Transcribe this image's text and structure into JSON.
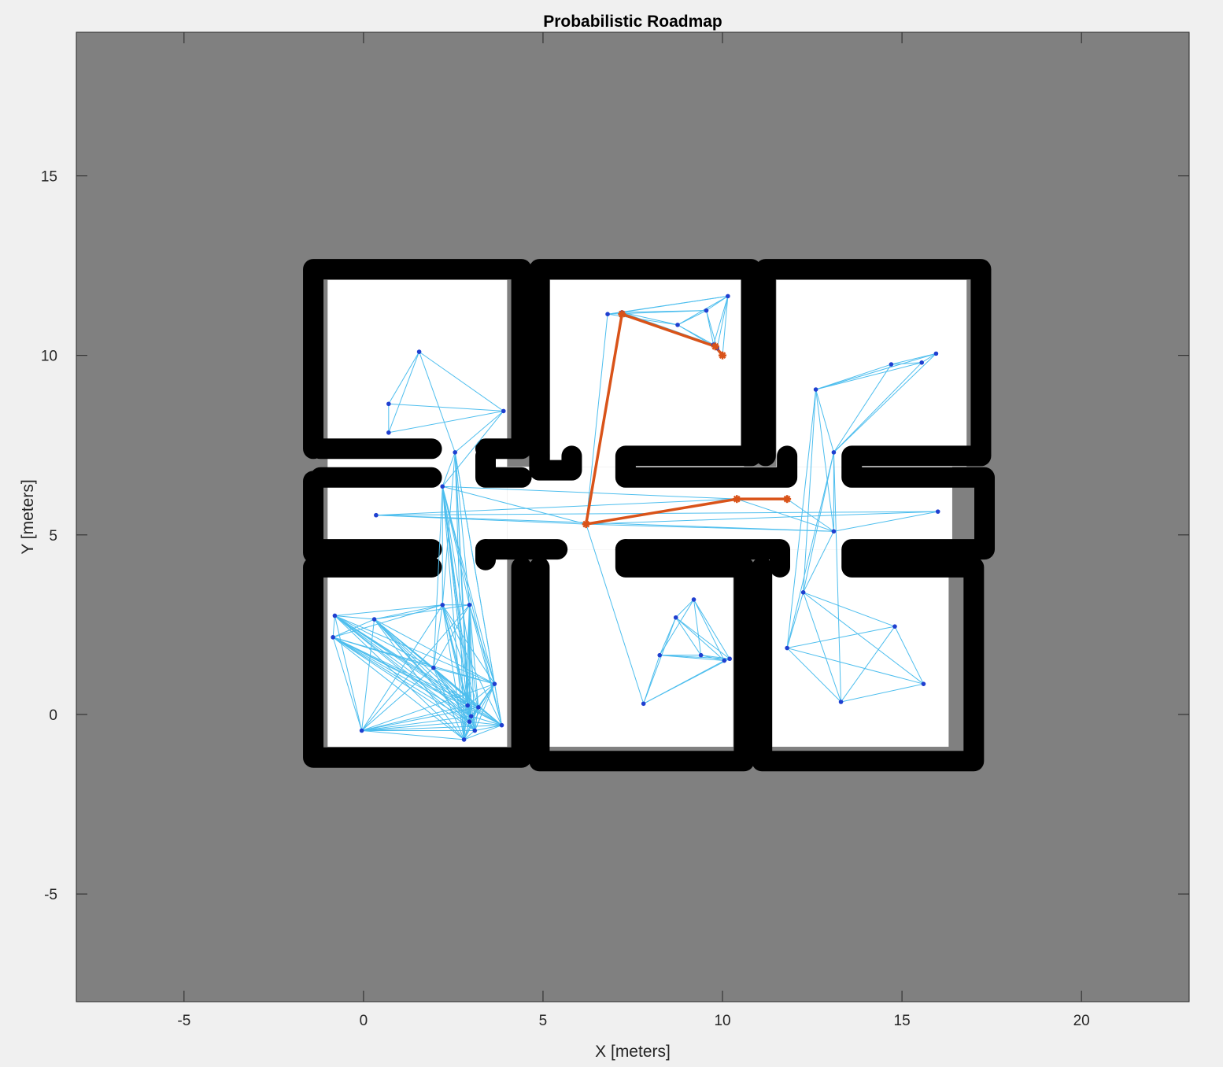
{
  "chart_data": {
    "type": "scatter",
    "title": "Probabilistic Roadmap",
    "xlabel": "X [meters]",
    "ylabel": "Y [meters]",
    "xlim": [
      -8,
      23
    ],
    "ylim": [
      -8,
      19
    ],
    "xticks": [
      -5,
      0,
      5,
      10,
      15,
      20
    ],
    "yticks": [
      -5,
      0,
      5,
      10,
      15
    ],
    "grid": false,
    "colors": {
      "unknown_area": "#808080",
      "free_space": "#ffffff",
      "occupied": "#000000",
      "edges": "#4dbeee",
      "nodes": "#1f3fd0",
      "path": "#d95319",
      "figure_bg": "#f0f0f0"
    },
    "map": {
      "free_space": [
        {
          "x": [
            -1.0,
            4.0
          ],
          "y": [
            -0.9,
            12.1
          ]
        },
        {
          "x": [
            4.0,
            16.4
          ],
          "y": [
            4.6,
            6.9
          ]
        },
        {
          "x": [
            5.2,
            10.6
          ],
          "y": [
            6.9,
            12.1
          ]
        },
        {
          "x": [
            11.5,
            16.8
          ],
          "y": [
            6.9,
            12.1
          ]
        },
        {
          "x": [
            5.1,
            10.3
          ],
          "y": [
            -0.9,
            4.6
          ]
        },
        {
          "x": [
            11.3,
            16.3
          ],
          "y": [
            -0.9,
            4.6
          ]
        }
      ],
      "walls": [
        [
          [
            -1.4,
            7.4
          ],
          [
            -1.4,
            12.4
          ],
          [
            4.4,
            12.4
          ],
          [
            4.4,
            7.4
          ],
          [
            3.4,
            7.4
          ]
        ],
        [
          [
            -1.4,
            6.5
          ],
          [
            -1.4,
            4.5
          ]
        ],
        [
          [
            -1.4,
            4.1
          ],
          [
            -1.4,
            -1.2
          ],
          [
            4.4,
            -1.2
          ],
          [
            4.4,
            4.1
          ]
        ],
        [
          [
            -1.2,
            7.4
          ],
          [
            1.9,
            7.4
          ]
        ],
        [
          [
            -1.2,
            6.6
          ],
          [
            1.9,
            6.6
          ]
        ],
        [
          [
            -1.2,
            4.6
          ],
          [
            1.9,
            4.6
          ]
        ],
        [
          [
            -1.2,
            4.1
          ],
          [
            1.9,
            4.1
          ]
        ],
        [
          [
            3.4,
            7.2
          ],
          [
            3.4,
            6.6
          ],
          [
            4.4,
            6.6
          ]
        ],
        [
          [
            3.4,
            4.6
          ],
          [
            5.4,
            4.6
          ]
        ],
        [
          [
            3.4,
            4.6
          ],
          [
            3.4,
            4.3
          ]
        ],
        [
          [
            4.9,
            7.2
          ],
          [
            4.9,
            12.4
          ],
          [
            10.8,
            12.4
          ],
          [
            10.8,
            7.2
          ],
          [
            7.3,
            7.2
          ],
          [
            7.3,
            6.6
          ],
          [
            11.8,
            6.6
          ],
          [
            11.8,
            7.2
          ]
        ],
        [
          [
            4.9,
            7.2
          ],
          [
            4.9,
            6.8
          ],
          [
            5.8,
            6.8
          ],
          [
            5.8,
            7.2
          ]
        ],
        [
          [
            7.3,
            4.6
          ],
          [
            11.6,
            4.6
          ],
          [
            11.6,
            4.1
          ]
        ],
        [
          [
            7.3,
            4.6
          ],
          [
            7.3,
            4.1
          ],
          [
            10.6,
            4.1
          ]
        ],
        [
          [
            4.9,
            4.1
          ],
          [
            4.9,
            -1.3
          ],
          [
            10.6,
            -1.3
          ],
          [
            10.6,
            4.1
          ]
        ],
        [
          [
            11.2,
            7.2
          ],
          [
            11.2,
            12.4
          ],
          [
            17.2,
            12.4
          ],
          [
            17.2,
            7.2
          ],
          [
            13.6,
            7.2
          ],
          [
            13.6,
            6.6
          ],
          [
            17.3,
            6.6
          ],
          [
            17.3,
            4.6
          ],
          [
            13.6,
            4.6
          ],
          [
            13.6,
            4.1
          ],
          [
            17.0,
            4.1
          ],
          [
            17.0,
            -1.3
          ],
          [
            11.1,
            -1.3
          ],
          [
            11.1,
            4.1
          ]
        ]
      ]
    },
    "nodes": [
      [
        1.55,
        10.1
      ],
      [
        0.7,
        8.65
      ],
      [
        0.7,
        7.85
      ],
      [
        3.9,
        8.45
      ],
      [
        2.55,
        7.3
      ],
      [
        2.2,
        6.35
      ],
      [
        0.35,
        5.55
      ],
      [
        -0.8,
        2.75
      ],
      [
        -0.85,
        2.15
      ],
      [
        0.3,
        2.65
      ],
      [
        1.95,
        1.3
      ],
      [
        2.2,
        3.05
      ],
      [
        2.95,
        3.05
      ],
      [
        3.65,
        0.85
      ],
      [
        -0.05,
        -0.45
      ],
      [
        2.8,
        -0.7
      ],
      [
        2.9,
        0.25
      ],
      [
        3.2,
        0.2
      ],
      [
        3.0,
        -0.05
      ],
      [
        2.95,
        -0.2
      ],
      [
        3.1,
        -0.45
      ],
      [
        3.85,
        -0.3
      ],
      [
        6.8,
        11.15
      ],
      [
        7.2,
        11.2
      ],
      [
        8.75,
        10.85
      ],
      [
        9.55,
        11.25
      ],
      [
        10.15,
        11.65
      ],
      [
        9.75,
        10.3
      ],
      [
        9.85,
        10.2
      ],
      [
        10.0,
        10.0
      ],
      [
        6.2,
        5.3
      ],
      [
        10.4,
        6.0
      ],
      [
        11.8,
        6.0
      ],
      [
        12.6,
        9.05
      ],
      [
        14.7,
        9.75
      ],
      [
        15.55,
        9.8
      ],
      [
        15.95,
        10.05
      ],
      [
        13.1,
        7.3
      ],
      [
        16.0,
        5.65
      ],
      [
        13.1,
        5.1
      ],
      [
        12.25,
        3.4
      ],
      [
        11.8,
        1.85
      ],
      [
        14.8,
        2.45
      ],
      [
        15.6,
        0.85
      ],
      [
        13.3,
        0.35
      ],
      [
        9.2,
        3.2
      ],
      [
        8.7,
        2.7
      ],
      [
        8.25,
        1.65
      ],
      [
        9.4,
        1.65
      ],
      [
        10.05,
        1.5
      ],
      [
        10.2,
        1.55
      ],
      [
        7.8,
        0.3
      ]
    ],
    "edges": [
      [
        0,
        1
      ],
      [
        0,
        2
      ],
      [
        0,
        3
      ],
      [
        0,
        4
      ],
      [
        1,
        3
      ],
      [
        1,
        2
      ],
      [
        2,
        3
      ],
      [
        3,
        4
      ],
      [
        3,
        5
      ],
      [
        4,
        5
      ],
      [
        4,
        11
      ],
      [
        4,
        12
      ],
      [
        4,
        13
      ],
      [
        4,
        15
      ],
      [
        4,
        16
      ],
      [
        4,
        19
      ],
      [
        4,
        21
      ],
      [
        5,
        11
      ],
      [
        5,
        12
      ],
      [
        5,
        13
      ],
      [
        5,
        15
      ],
      [
        5,
        16
      ],
      [
        5,
        17
      ],
      [
        5,
        18
      ],
      [
        5,
        19
      ],
      [
        5,
        20
      ],
      [
        5,
        21
      ],
      [
        5,
        10
      ],
      [
        5,
        30
      ],
      [
        5,
        31
      ],
      [
        6,
        30
      ],
      [
        6,
        31
      ],
      [
        6,
        38
      ],
      [
        6,
        39
      ],
      [
        30,
        38
      ],
      [
        30,
        39
      ],
      [
        38,
        39
      ],
      [
        39,
        31
      ],
      [
        39,
        32
      ],
      [
        31,
        32
      ],
      [
        30,
        31
      ],
      [
        30,
        22
      ],
      [
        30,
        23
      ],
      [
        30,
        51
      ],
      [
        7,
        8
      ],
      [
        7,
        9
      ],
      [
        7,
        10
      ],
      [
        7,
        11
      ],
      [
        7,
        13
      ],
      [
        7,
        14
      ],
      [
        7,
        15
      ],
      [
        7,
        16
      ],
      [
        7,
        17
      ],
      [
        7,
        18
      ],
      [
        7,
        19
      ],
      [
        7,
        20
      ],
      [
        7,
        21
      ],
      [
        8,
        9
      ],
      [
        8,
        10
      ],
      [
        8,
        11
      ],
      [
        8,
        13
      ],
      [
        8,
        14
      ],
      [
        8,
        15
      ],
      [
        8,
        16
      ],
      [
        8,
        17
      ],
      [
        8,
        18
      ],
      [
        8,
        19
      ],
      [
        8,
        20
      ],
      [
        8,
        21
      ],
      [
        9,
        10
      ],
      [
        9,
        11
      ],
      [
        9,
        12
      ],
      [
        9,
        13
      ],
      [
        9,
        14
      ],
      [
        9,
        15
      ],
      [
        9,
        16
      ],
      [
        9,
        17
      ],
      [
        9,
        18
      ],
      [
        9,
        19
      ],
      [
        9,
        20
      ],
      [
        9,
        21
      ],
      [
        10,
        11
      ],
      [
        10,
        12
      ],
      [
        10,
        13
      ],
      [
        10,
        14
      ],
      [
        10,
        15
      ],
      [
        10,
        16
      ],
      [
        10,
        17
      ],
      [
        10,
        18
      ],
      [
        10,
        19
      ],
      [
        10,
        20
      ],
      [
        10,
        21
      ],
      [
        11,
        12
      ],
      [
        11,
        13
      ],
      [
        11,
        14
      ],
      [
        11,
        15
      ],
      [
        11,
        16
      ],
      [
        11,
        17
      ],
      [
        11,
        18
      ],
      [
        11,
        19
      ],
      [
        11,
        20
      ],
      [
        11,
        21
      ],
      [
        12,
        13
      ],
      [
        12,
        14
      ],
      [
        12,
        15
      ],
      [
        12,
        16
      ],
      [
        12,
        17
      ],
      [
        12,
        18
      ],
      [
        12,
        19
      ],
      [
        12,
        20
      ],
      [
        12,
        21
      ],
      [
        13,
        14
      ],
      [
        13,
        15
      ],
      [
        13,
        16
      ],
      [
        13,
        17
      ],
      [
        13,
        18
      ],
      [
        13,
        19
      ],
      [
        13,
        20
      ],
      [
        13,
        21
      ],
      [
        14,
        15
      ],
      [
        14,
        16
      ],
      [
        14,
        17
      ],
      [
        14,
        18
      ],
      [
        14,
        19
      ],
      [
        14,
        20
      ],
      [
        14,
        21
      ],
      [
        15,
        16
      ],
      [
        15,
        17
      ],
      [
        15,
        18
      ],
      [
        15,
        19
      ],
      [
        15,
        20
      ],
      [
        15,
        21
      ],
      [
        16,
        17
      ],
      [
        16,
        18
      ],
      [
        16,
        19
      ],
      [
        16,
        20
      ],
      [
        16,
        21
      ],
      [
        17,
        18
      ],
      [
        17,
        19
      ],
      [
        17,
        20
      ],
      [
        17,
        21
      ],
      [
        18,
        19
      ],
      [
        18,
        20
      ],
      [
        18,
        21
      ],
      [
        19,
        20
      ],
      [
        19,
        21
      ],
      [
        20,
        21
      ],
      [
        22,
        23
      ],
      [
        22,
        24
      ],
      [
        22,
        25
      ],
      [
        22,
        26
      ],
      [
        23,
        24
      ],
      [
        23,
        25
      ],
      [
        23,
        26
      ],
      [
        23,
        27
      ],
      [
        23,
        28
      ],
      [
        24,
        25
      ],
      [
        24,
        26
      ],
      [
        24,
        27
      ],
      [
        24,
        28
      ],
      [
        25,
        26
      ],
      [
        25,
        27
      ],
      [
        25,
        28
      ],
      [
        26,
        27
      ],
      [
        26,
        28
      ],
      [
        26,
        29
      ],
      [
        27,
        28
      ],
      [
        27,
        29
      ],
      [
        28,
        29
      ],
      [
        33,
        34
      ],
      [
        33,
        35
      ],
      [
        33,
        36
      ],
      [
        33,
        37
      ],
      [
        33,
        39
      ],
      [
        33,
        40
      ],
      [
        33,
        41
      ],
      [
        34,
        35
      ],
      [
        34,
        36
      ],
      [
        34,
        37
      ],
      [
        35,
        36
      ],
      [
        35,
        37
      ],
      [
        36,
        37
      ],
      [
        37,
        39
      ],
      [
        37,
        40
      ],
      [
        37,
        41
      ],
      [
        37,
        44
      ],
      [
        39,
        40
      ],
      [
        40,
        41
      ],
      [
        40,
        42
      ],
      [
        40,
        43
      ],
      [
        40,
        44
      ],
      [
        41,
        42
      ],
      [
        41,
        43
      ],
      [
        41,
        44
      ],
      [
        42,
        43
      ],
      [
        42,
        44
      ],
      [
        43,
        44
      ],
      [
        45,
        46
      ],
      [
        45,
        47
      ],
      [
        45,
        48
      ],
      [
        45,
        49
      ],
      [
        45,
        50
      ],
      [
        46,
        47
      ],
      [
        46,
        48
      ],
      [
        46,
        49
      ],
      [
        46,
        50
      ],
      [
        46,
        51
      ],
      [
        47,
        48
      ],
      [
        47,
        49
      ],
      [
        47,
        50
      ],
      [
        47,
        51
      ],
      [
        48,
        49
      ],
      [
        48,
        50
      ],
      [
        49,
        50
      ],
      [
        49,
        51
      ],
      [
        50,
        51
      ]
    ],
    "path": [
      [
        11.8,
        6.0
      ],
      [
        10.4,
        6.0
      ],
      [
        6.2,
        5.3
      ],
      [
        7.2,
        11.15
      ],
      [
        9.8,
        10.25
      ],
      [
        10.0,
        10.0
      ]
    ]
  }
}
